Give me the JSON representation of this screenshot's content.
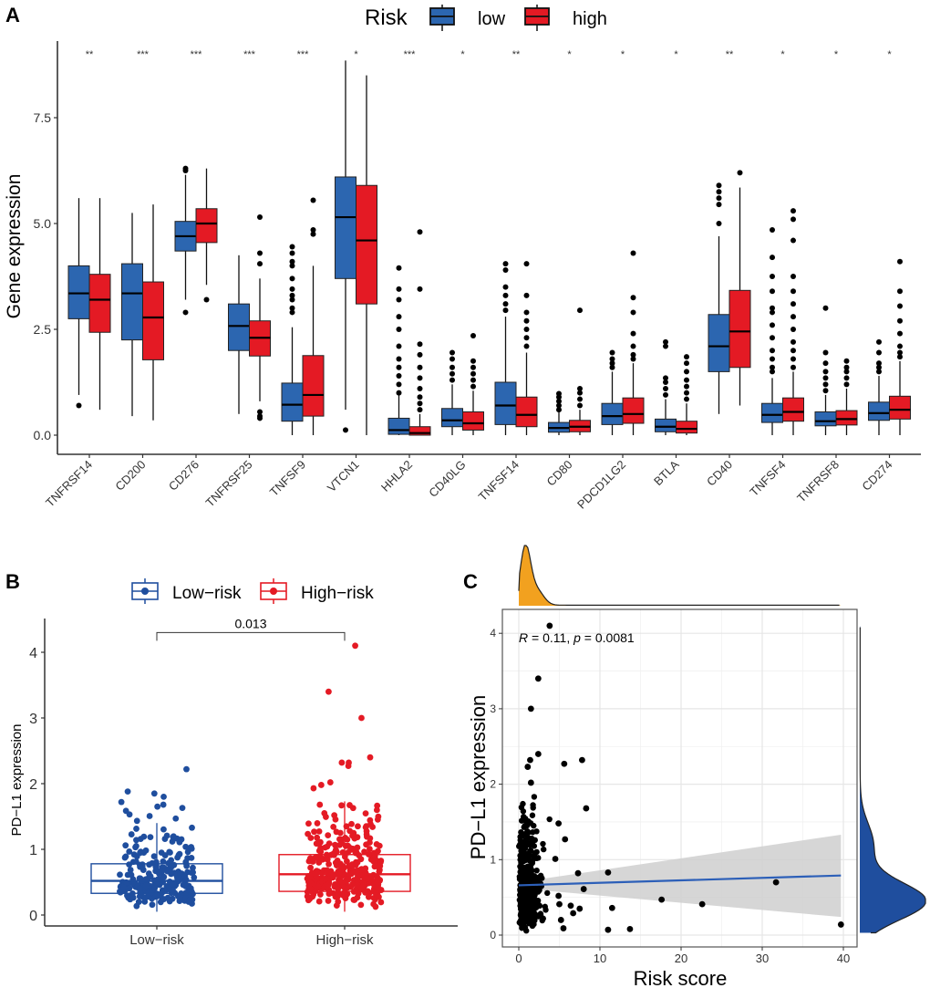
{
  "panels": {
    "a": "A",
    "b": "B",
    "c": "C"
  },
  "colors": {
    "low": "#2C66B0",
    "high": "#E41A24",
    "b_low": "#1F4E9E",
    "b_high": "#E41A24",
    "scatter": "#000000",
    "fit_line": "#2C5FB8",
    "ci_band": "#CFCFCF",
    "density_x": "#F2A11F",
    "density_y": "#1F4E9E"
  },
  "chart_data": [
    {
      "id": "A",
      "type": "box",
      "title": "",
      "xlabel": "",
      "ylabel": "Gene expression",
      "ylim": [
        -0.3,
        9.3
      ],
      "yticks": [
        0.0,
        2.5,
        5.0,
        7.5
      ],
      "ytick_labels": [
        "0.0",
        "2.5",
        "5.0",
        "7.5"
      ],
      "legend": {
        "title": "Risk",
        "position": "top",
        "entries": [
          "low",
          "high"
        ]
      },
      "categories": [
        "TNFRSF14",
        "CD200",
        "CD276",
        "TNFRSF25",
        "TNFSF9",
        "VTCN1",
        "HHLA2",
        "CD40LG",
        "TNFSF14",
        "CD80",
        "PDCD1LG2",
        "BTLA",
        "CD40",
        "TNFSF4",
        "TNFRSF8",
        "CD274"
      ],
      "significance": [
        "**",
        "***",
        "***",
        "***",
        "***",
        "*",
        "***",
        "*",
        "**",
        "*",
        "*",
        "*",
        "**",
        "*",
        "*",
        "*"
      ],
      "series": [
        {
          "name": "low",
          "boxes": [
            {
              "min": 0.95,
              "q1": 2.75,
              "median": 3.35,
              "q3": 4.0,
              "max": 5.6,
              "outliers": [
                0.7
              ]
            },
            {
              "min": 0.45,
              "q1": 2.25,
              "median": 3.35,
              "q3": 4.05,
              "max": 5.25,
              "outliers": []
            },
            {
              "min": 3.2,
              "q1": 4.35,
              "median": 4.7,
              "q3": 5.05,
              "max": 6.15,
              "outliers": [
                6.25,
                6.3,
                2.9
              ]
            },
            {
              "min": 0.5,
              "q1": 2.0,
              "median": 2.58,
              "q3": 3.1,
              "max": 4.25,
              "outliers": []
            },
            {
              "min": 0.0,
              "q1": 0.33,
              "median": 0.72,
              "q3": 1.23,
              "max": 2.55,
              "outliers": [
                2.9,
                3.0,
                3.2,
                3.3,
                3.45,
                3.7,
                4.0,
                4.1,
                4.3,
                4.45
              ]
            },
            {
              "min": 0.6,
              "q1": 3.7,
              "median": 5.15,
              "q3": 6.1,
              "max": 8.85,
              "outliers": [
                0.12
              ]
            },
            {
              "min": 0.0,
              "q1": 0.02,
              "median": 0.12,
              "q3": 0.4,
              "max": 0.95,
              "outliers": [
                1.0,
                1.2,
                1.4,
                1.6,
                1.8,
                2.1,
                2.5,
                2.8,
                3.2,
                3.45,
                3.95
              ]
            },
            {
              "min": 0.0,
              "q1": 0.2,
              "median": 0.35,
              "q3": 0.63,
              "max": 1.2,
              "outliers": [
                1.3,
                1.45,
                1.6,
                1.8,
                1.95
              ]
            },
            {
              "min": 0.0,
              "q1": 0.25,
              "median": 0.7,
              "q3": 1.25,
              "max": 2.8,
              "outliers": [
                2.95,
                3.1,
                3.3,
                3.5,
                3.9,
                4.05
              ]
            },
            {
              "min": 0.0,
              "q1": 0.07,
              "median": 0.17,
              "q3": 0.3,
              "max": 0.55,
              "outliers": [
                0.6,
                0.7,
                0.8,
                0.9,
                0.98
              ]
            },
            {
              "min": 0.0,
              "q1": 0.25,
              "median": 0.45,
              "q3": 0.75,
              "max": 1.5,
              "outliers": [
                1.6,
                1.7,
                1.8,
                1.95
              ]
            },
            {
              "min": 0.0,
              "q1": 0.08,
              "median": 0.2,
              "q3": 0.38,
              "max": 0.85,
              "outliers": [
                0.95,
                1.1,
                1.25,
                1.35,
                2.1,
                2.2
              ]
            },
            {
              "min": 0.5,
              "q1": 1.5,
              "median": 2.1,
              "q3": 2.85,
              "max": 4.7,
              "outliers": [
                5.0,
                5.45,
                5.6,
                5.75,
                5.9
              ]
            },
            {
              "min": 0.0,
              "q1": 0.3,
              "median": 0.48,
              "q3": 0.75,
              "max": 1.35,
              "outliers": [
                1.5,
                1.6,
                1.8,
                2.0,
                2.3,
                2.6,
                2.9,
                3.0,
                3.4,
                3.75,
                4.2,
                4.85
              ]
            },
            {
              "min": 0.0,
              "q1": 0.22,
              "median": 0.33,
              "q3": 0.55,
              "max": 0.95,
              "outliers": [
                1.05,
                1.2,
                1.35,
                1.5,
                1.7,
                1.95,
                3.0
              ]
            },
            {
              "min": 0.0,
              "q1": 0.35,
              "median": 0.52,
              "q3": 0.78,
              "max": 1.4,
              "outliers": [
                1.5,
                1.6,
                1.7,
                1.95,
                2.2
              ]
            }
          ]
        },
        {
          "name": "high",
          "boxes": [
            {
              "min": 0.6,
              "q1": 2.43,
              "median": 3.2,
              "q3": 3.8,
              "max": 5.6,
              "outliers": []
            },
            {
              "min": 0.35,
              "q1": 1.78,
              "median": 2.78,
              "q3": 3.62,
              "max": 5.45,
              "outliers": []
            },
            {
              "min": 3.55,
              "q1": 4.55,
              "median": 5.0,
              "q3": 5.35,
              "max": 6.3,
              "outliers": [
                3.2
              ]
            },
            {
              "min": 0.8,
              "q1": 1.87,
              "median": 2.3,
              "q3": 2.7,
              "max": 3.7,
              "outliers": [
                0.4,
                0.45,
                0.55,
                4.05,
                4.3,
                5.15
              ]
            },
            {
              "min": 0.0,
              "q1": 0.45,
              "median": 0.95,
              "q3": 1.88,
              "max": 4.0,
              "outliers": [
                4.75,
                4.85,
                5.55
              ]
            },
            {
              "min": 0.0,
              "q1": 3.1,
              "median": 4.6,
              "q3": 5.9,
              "max": 8.5,
              "outliers": []
            },
            {
              "min": 0.0,
              "q1": 0.0,
              "median": 0.05,
              "q3": 0.2,
              "max": 0.5,
              "outliers": [
                0.6,
                0.75,
                0.9,
                1.1,
                1.35,
                1.6,
                1.9,
                2.15,
                3.45,
                4.8
              ]
            },
            {
              "min": 0.0,
              "q1": 0.12,
              "median": 0.28,
              "q3": 0.55,
              "max": 1.05,
              "outliers": [
                1.15,
                1.3,
                1.45,
                1.6,
                1.75,
                2.35
              ]
            },
            {
              "min": 0.0,
              "q1": 0.2,
              "median": 0.48,
              "q3": 0.9,
              "max": 1.95,
              "outliers": [
                2.1,
                2.3,
                2.5,
                2.7,
                2.9,
                3.3,
                4.05
              ]
            },
            {
              "min": 0.0,
              "q1": 0.08,
              "median": 0.2,
              "q3": 0.35,
              "max": 0.6,
              "outliers": [
                0.7,
                0.85,
                1.0,
                1.1,
                2.95
              ]
            },
            {
              "min": 0.0,
              "q1": 0.28,
              "median": 0.5,
              "q3": 0.88,
              "max": 1.7,
              "outliers": [
                1.8,
                1.9,
                2.1,
                2.4,
                2.9,
                3.25,
                4.3
              ]
            },
            {
              "min": 0.0,
              "q1": 0.05,
              "median": 0.15,
              "q3": 0.33,
              "max": 0.75,
              "outliers": [
                0.85,
                1.0,
                1.15,
                1.3,
                1.5,
                1.7,
                1.85
              ]
            },
            {
              "min": 0.7,
              "q1": 1.6,
              "median": 2.45,
              "q3": 3.42,
              "max": 5.85,
              "outliers": [
                6.2
              ]
            },
            {
              "min": 0.0,
              "q1": 0.33,
              "median": 0.55,
              "q3": 0.88,
              "max": 1.5,
              "outliers": [
                1.6,
                1.8,
                2.0,
                2.2,
                2.5,
                2.8,
                3.1,
                3.4,
                3.75,
                4.6,
                5.1,
                5.3
              ]
            },
            {
              "min": 0.0,
              "q1": 0.24,
              "median": 0.38,
              "q3": 0.58,
              "max": 1.1,
              "outliers": [
                1.2,
                1.35,
                1.5,
                1.6,
                1.75
              ]
            },
            {
              "min": 0.0,
              "q1": 0.38,
              "median": 0.6,
              "q3": 0.92,
              "max": 1.75,
              "outliers": [
                1.85,
                1.95,
                2.1,
                2.4,
                2.7,
                3.05,
                3.4,
                4.1
              ]
            }
          ]
        }
      ]
    },
    {
      "id": "B",
      "type": "box",
      "title": "",
      "xlabel": "",
      "ylabel": "PD−L1 expression",
      "ylim": [
        -0.15,
        4.5
      ],
      "yticks": [
        0,
        1,
        2,
        3,
        4
      ],
      "ytick_labels": [
        "0",
        "1",
        "2",
        "3",
        "4"
      ],
      "legend": {
        "position": "top",
        "entries": [
          "Low−risk",
          "High−risk"
        ]
      },
      "categories": [
        "Low−risk",
        "High−risk"
      ],
      "comparison": {
        "label": "0.013",
        "between": [
          "Low−risk",
          "High−risk"
        ],
        "y": 4.3
      },
      "series": [
        {
          "name": "Low−risk",
          "box": {
            "min": 0.05,
            "q1": 0.33,
            "median": 0.52,
            "q3": 0.78,
            "max": 1.4
          },
          "n_points": 250,
          "notable_points": [
            2.22,
            1.88,
            1.85,
            1.8,
            1.72,
            1.68,
            1.65,
            1.63
          ]
        },
        {
          "name": "High−risk",
          "box": {
            "min": 0.05,
            "q1": 0.36,
            "median": 0.62,
            "q3": 0.92,
            "max": 1.73
          },
          "n_points": 330,
          "notable_points": [
            4.1,
            3.4,
            3.0,
            2.4,
            2.32,
            2.32,
            2.27,
            2.02,
            1.98,
            1.93
          ]
        }
      ]
    },
    {
      "id": "C",
      "type": "scatter",
      "title": "",
      "xlabel": "Risk score",
      "ylabel": "PD−L1 expression",
      "xlim": [
        -2,
        42
      ],
      "ylim": [
        -0.15,
        4.2
      ],
      "xticks": [
        0,
        10,
        20,
        30,
        40
      ],
      "xtick_labels": [
        "0",
        "10",
        "20",
        "30",
        "40"
      ],
      "yticks": [
        0,
        1,
        2,
        3,
        4
      ],
      "ytick_labels": [
        "0",
        "1",
        "2",
        "3",
        "4"
      ],
      "grid": true,
      "annotation": {
        "R_label": "R",
        "R_value": "0.11",
        "p_label": "p",
        "p_value": "0.0081"
      },
      "fit": {
        "x0": 0,
        "y0": 0.66,
        "x1": 39.7,
        "y1": 0.79,
        "ci_lower_end": 0.24,
        "ci_upper_end": 1.33
      },
      "cluster": {
        "x_range": [
          0,
          4.5
        ],
        "y_range": [
          0.03,
          2.0
        ],
        "n_points": 560
      },
      "points": [
        {
          "x": 3.8,
          "y": 4.1
        },
        {
          "x": 2.4,
          "y": 3.4
        },
        {
          "x": 1.5,
          "y": 3.0
        },
        {
          "x": 2.4,
          "y": 2.4
        },
        {
          "x": 1.4,
          "y": 2.32
        },
        {
          "x": 1.1,
          "y": 2.23
        },
        {
          "x": 5.6,
          "y": 2.27
        },
        {
          "x": 7.8,
          "y": 2.32
        },
        {
          "x": 1.5,
          "y": 2.02
        },
        {
          "x": 8.3,
          "y": 1.68
        },
        {
          "x": 4.9,
          "y": 1.48
        },
        {
          "x": 5.7,
          "y": 1.27
        },
        {
          "x": 4.5,
          "y": 1.01
        },
        {
          "x": 7.3,
          "y": 0.82
        },
        {
          "x": 11.0,
          "y": 0.83
        },
        {
          "x": 8.0,
          "y": 0.61
        },
        {
          "x": 31.7,
          "y": 0.7
        },
        {
          "x": 17.6,
          "y": 0.47
        },
        {
          "x": 22.6,
          "y": 0.41
        },
        {
          "x": 11.5,
          "y": 0.36
        },
        {
          "x": 6.4,
          "y": 0.39
        },
        {
          "x": 7.5,
          "y": 0.35
        },
        {
          "x": 6.7,
          "y": 0.29
        },
        {
          "x": 5.5,
          "y": 0.09
        },
        {
          "x": 11.0,
          "y": 0.07
        },
        {
          "x": 13.7,
          "y": 0.08
        },
        {
          "x": 39.7,
          "y": 0.14
        },
        {
          "x": 4.9,
          "y": 0.52
        },
        {
          "x": 5.0,
          "y": 0.41
        },
        {
          "x": 5.2,
          "y": 0.2
        }
      ],
      "marginal_x": {
        "type": "density",
        "peak_x": 0.8,
        "tail_to": 39.7
      },
      "marginal_y": {
        "type": "density",
        "peak_y": 0.45,
        "tail_to": 4.1
      }
    }
  ]
}
